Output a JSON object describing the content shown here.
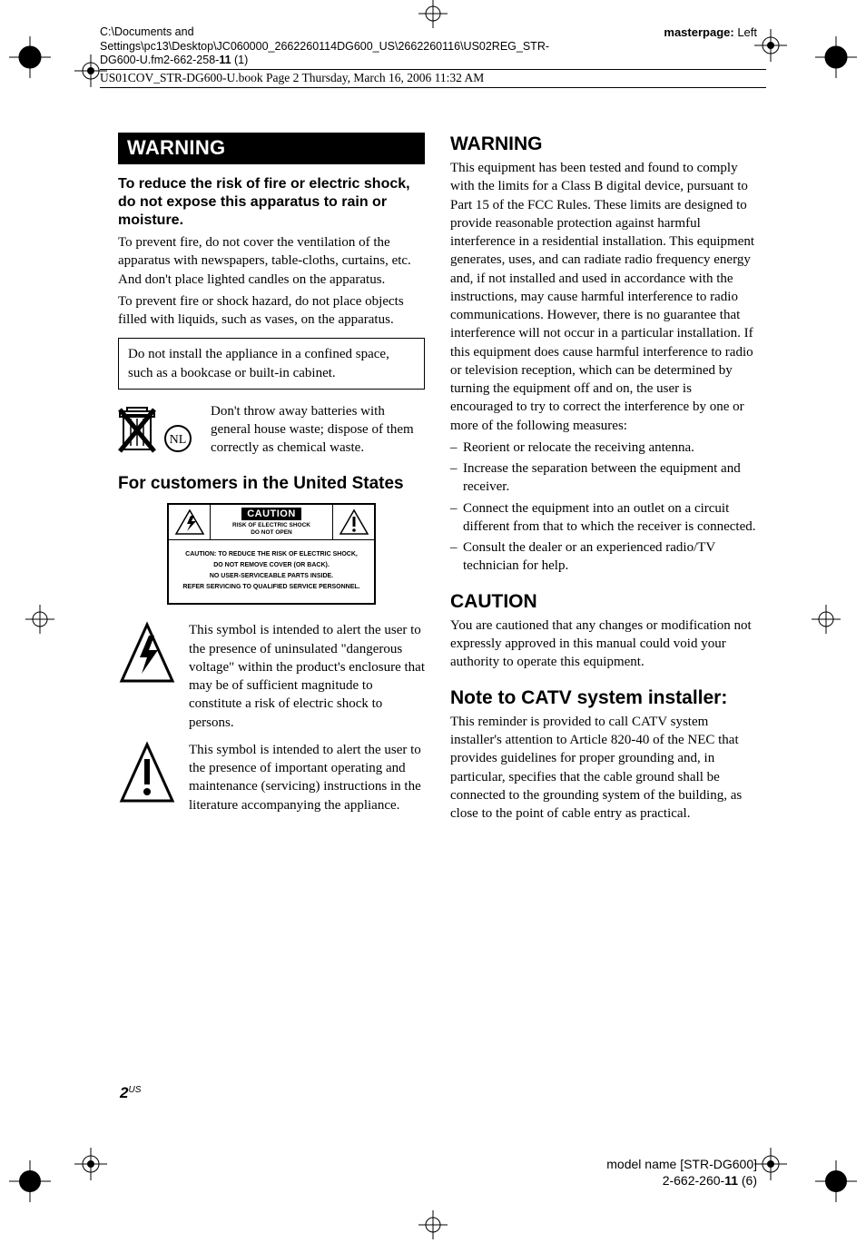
{
  "header": {
    "path_lines": "C:\\Documents and Settings\\pc13\\Desktop\\JC060000_2662260114DG600_US\\2662260116\\US02REG_STR-DG600-U.fm2-662-258-",
    "path_bold": "11",
    "path_tail": " (1)",
    "masterpage_label": "masterpage: ",
    "masterpage_value": "Left",
    "bookline": "US01COV_STR-DG600-U.book  Page 2  Thursday, March 16, 2006  11:32 AM"
  },
  "left": {
    "warning_bar": "WARNING",
    "warn_sub": "To reduce the risk of fire or electric shock, do not expose this apparatus to rain or moisture.",
    "p1": "To prevent fire, do not cover the ventilation of the apparatus with newspapers, table-cloths, curtains, etc. And don't place lighted candles on the apparatus.",
    "p2": "To prevent fire or shock hazard, do not place objects filled with liquids, such as vases, on the apparatus.",
    "boxed": "Do not install the appliance in a confined space, such as a bookcase or built-in cabinet.",
    "battery_text": "Don't throw away batteries with general house waste; dispose of them correctly as chemical waste.",
    "us_heading": "For customers in the United States",
    "caution": {
      "title": "CAUTION",
      "sub1": "RISK OF ELECTRIC SHOCK",
      "sub2": "DO NOT OPEN",
      "body1": "CAUTION: TO REDUCE THE RISK OF ELECTRIC SHOCK,",
      "body2": "DO NOT REMOVE COVER (OR BACK).",
      "body3": "NO USER-SERVICEABLE PARTS INSIDE.",
      "body4": "REFER SERVICING TO QUALIFIED SERVICE PERSONNEL."
    },
    "sym1": "This symbol is intended to alert the user to the presence of uninsulated \"dangerous voltage\" within the product's enclosure that may be of sufficient magnitude to constitute a risk of electric shock to persons.",
    "sym2": "This symbol is intended to alert the user to the presence of important operating and maintenance (servicing) instructions in the literature accompanying the appliance."
  },
  "right": {
    "warning_h": "WARNING",
    "warning_body": "This equipment has been tested and found to comply with the limits for a Class B digital device, pursuant to Part 15 of the FCC Rules. These limits are designed to provide reasonable protection against harmful interference in a residential installation. This equipment generates, uses, and can radiate radio frequency energy and, if not installed and used in accordance with the instructions, may cause harmful interference to radio communications. However, there is no guarantee that interference will not occur in a particular installation. If this equipment does cause harmful interference to radio or television reception, which can be determined by turning the equipment off and on, the user is encouraged to try to correct the interference by one or more of the following measures:",
    "measures": [
      "Reorient or relocate the receiving antenna.",
      "Increase the separation between the equipment and receiver.",
      "Connect the equipment into an outlet on a circuit different from that to which the receiver is connected.",
      "Consult the dealer or an experienced radio/TV technician for help."
    ],
    "caution_h": "CAUTION",
    "caution_body": "You are cautioned that any changes or modification not expressly approved in this manual could void your authority to operate this equipment.",
    "catv_h": "Note to CATV system installer:",
    "catv_body": "This reminder is provided to call CATV system installer's attention to Article 820-40 of the NEC that provides guidelines for proper grounding and, in particular, specifies that the cable ground shall be connected to the grounding system of the building, as close to the point of cable entry as practical."
  },
  "page": {
    "num": "2",
    "sup": "US"
  },
  "footer": {
    "model": "model name [STR-DG600]",
    "code_a": "2-662-260-",
    "code_b": "11",
    "code_c": " (6)"
  },
  "icons": {
    "bolt_color": "#000000",
    "tri_color": "#000000",
    "reg_color": "#000000"
  }
}
